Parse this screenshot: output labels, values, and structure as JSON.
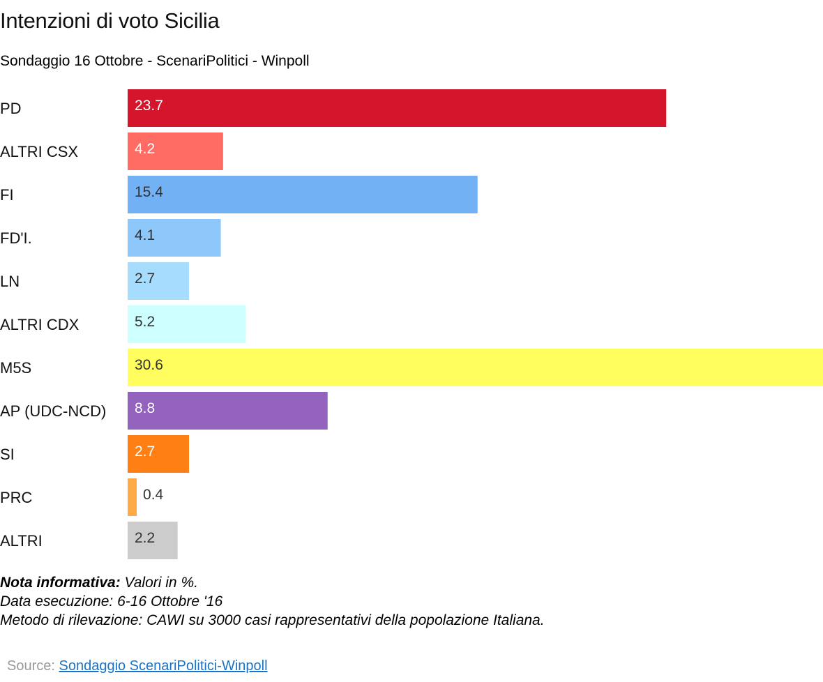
{
  "title": "Intenzioni di voto Sicilia",
  "subtitle": "Sondaggio 16 Ottobre - ScenariPolitici - Winpoll",
  "chart_data": {
    "type": "bar",
    "orientation": "horizontal",
    "categories": [
      "PD",
      "ALTRI CSX",
      "FI",
      "FD'I.",
      "LN",
      "ALTRI CDX",
      "M5S",
      "AP (UDC-NCD)",
      "SI",
      "PRC",
      "ALTRI"
    ],
    "values": [
      23.7,
      4.2,
      15.4,
      4.1,
      2.7,
      5.2,
      30.6,
      8.8,
      2.7,
      0.4,
      2.2
    ],
    "value_labels": [
      "23.7",
      "4.2",
      "15.4",
      "4.1",
      "2.7",
      "5.2",
      "30.6",
      "8.8",
      "2.7",
      "0.4",
      "2.2"
    ],
    "colors": [
      "#d4152b",
      "#fe6c64",
      "#72b2f4",
      "#8ec8fb",
      "#a6ddfe",
      "#ccfffe",
      "#fffe5e",
      "#9262bc",
      "#fe7f14",
      "#feaa46",
      "#cccccc"
    ],
    "value_label_colors": [
      "#ffffff",
      "#ffffff",
      "#333333",
      "#333333",
      "#333333",
      "#333333",
      "#333333",
      "#ffffff",
      "#ffffff",
      "#333333",
      "#333333"
    ],
    "xlim": [
      0,
      30.6
    ],
    "grid": false,
    "legend": "none"
  },
  "notes": {
    "bold_label": "Nota informativa:",
    "line1_rest": " Valori in %.",
    "line2": "Data esecuzione: 6-16  Ottobre '16",
    "line3": "Metodo di rilevazione: CAWI su 3000 casi rappresentativi della popolazione Italiana."
  },
  "source": {
    "label": "Source: ",
    "link_text": "Sondaggio ScenariPolitici-Winpoll"
  }
}
